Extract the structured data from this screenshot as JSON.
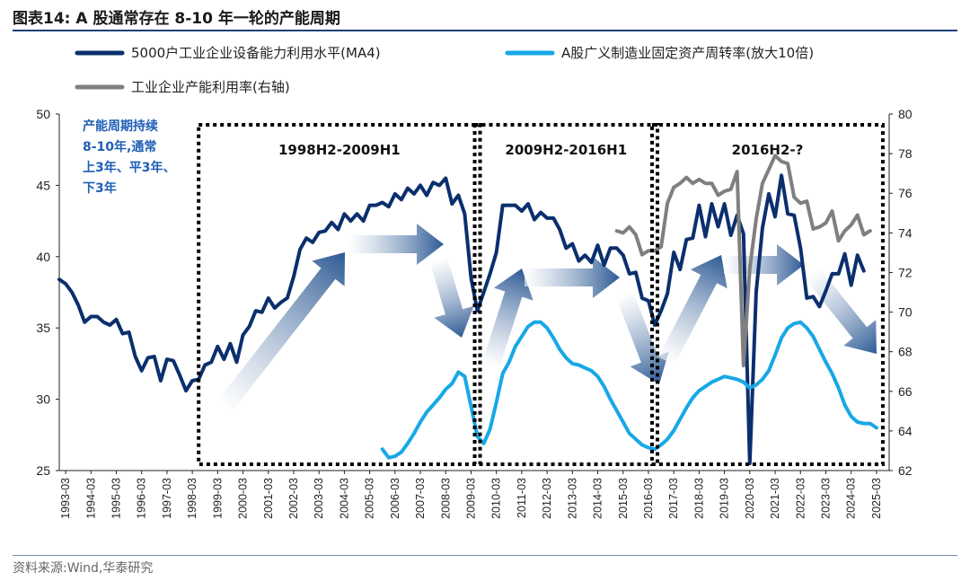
{
  "title": "图表14:  A 股通常存在 8-10 年一轮的产能周期",
  "source": "资料来源:Wind,华泰研究",
  "chart_data": {
    "type": "line",
    "colors": {
      "dark": "#0b2f6e",
      "light": "#17a8e6",
      "gray": "#7f7f7f",
      "arrow": "#2d5a94"
    },
    "legend": [
      "5000户工业企业设备能力利用水平(MA4)",
      "A股广义制造业固定资产周转率(放大10倍)",
      "工业企业产能利用率(右轴)"
    ],
    "left_axis": {
      "min": 25,
      "max": 50,
      "ticks": [
        "25",
        "30",
        "35",
        "40",
        "45",
        "50"
      ]
    },
    "right_axis": {
      "min": 62,
      "max": 80,
      "ticks": [
        "62",
        "64",
        "66",
        "68",
        "70",
        "72",
        "74",
        "76",
        "78",
        "80"
      ]
    },
    "x_range": [
      1993.0,
      2025.75
    ],
    "x_ticks": [
      "1993-03",
      "1994-03",
      "1995-03",
      "1996-03",
      "1997-03",
      "1998-03",
      "1999-03",
      "2000-03",
      "2001-03",
      "2002-03",
      "2003-03",
      "2004-03",
      "2005-03",
      "2006-03",
      "2007-03",
      "2008-03",
      "2009-03",
      "2010-03",
      "2011-03",
      "2012-03",
      "2013-03",
      "2014-03",
      "2015-03",
      "2016-03",
      "2017-03",
      "2018-03",
      "2019-03",
      "2020-03",
      "2021-03",
      "2022-03",
      "2023-03",
      "2024-03",
      "2025-03"
    ],
    "periods": [
      {
        "label": "1998H2-2009H1",
        "from": 1998.5,
        "to": 2009.5
      },
      {
        "label": "2009H2-2016H1",
        "from": 2009.5,
        "to": 2016.5
      },
      {
        "label": "2016H2-?",
        "from": 2016.5,
        "to": 2025.5
      }
    ],
    "note": [
      "产能周期持续",
      "8-10年,通常",
      "上3年、平3年、",
      "下3年"
    ],
    "series": [
      {
        "name": "5000户工业企业设备能力利用水平(MA4)",
        "axis": "left",
        "color_key": "dark",
        "points": [
          [
            1993.0,
            38.4
          ],
          [
            1993.25,
            38.1
          ],
          [
            1993.5,
            37.5
          ],
          [
            1993.75,
            36.6
          ],
          [
            1994.0,
            35.4
          ],
          [
            1994.25,
            35.8
          ],
          [
            1994.5,
            35.8
          ],
          [
            1994.75,
            35.4
          ],
          [
            1995.0,
            35.2
          ],
          [
            1995.25,
            35.6
          ],
          [
            1995.5,
            34.6
          ],
          [
            1995.75,
            34.7
          ],
          [
            1996.0,
            33.0
          ],
          [
            1996.25,
            32.0
          ],
          [
            1996.5,
            32.9
          ],
          [
            1996.75,
            33.0
          ],
          [
            1997.0,
            31.3
          ],
          [
            1997.25,
            32.8
          ],
          [
            1997.5,
            32.7
          ],
          [
            1997.75,
            31.7
          ],
          [
            1998.0,
            30.6
          ],
          [
            1998.25,
            31.3
          ],
          [
            1998.5,
            31.4
          ],
          [
            1998.75,
            32.4
          ],
          [
            1999.0,
            32.6
          ],
          [
            1999.25,
            33.7
          ],
          [
            1999.5,
            32.8
          ],
          [
            1999.75,
            33.9
          ],
          [
            2000.0,
            32.6
          ],
          [
            2000.25,
            34.5
          ],
          [
            2000.5,
            35.1
          ],
          [
            2000.75,
            36.2
          ],
          [
            2001.0,
            36.1
          ],
          [
            2001.25,
            37.1
          ],
          [
            2001.5,
            36.4
          ],
          [
            2001.75,
            36.8
          ],
          [
            2002.0,
            37.1
          ],
          [
            2002.25,
            38.6
          ],
          [
            2002.5,
            40.5
          ],
          [
            2002.75,
            41.3
          ],
          [
            2003.0,
            41.0
          ],
          [
            2003.25,
            41.7
          ],
          [
            2003.5,
            41.8
          ],
          [
            2003.75,
            42.4
          ],
          [
            2004.0,
            41.9
          ],
          [
            2004.25,
            43.0
          ],
          [
            2004.5,
            42.5
          ],
          [
            2004.75,
            43.0
          ],
          [
            2005.0,
            42.5
          ],
          [
            2005.25,
            43.6
          ],
          [
            2005.5,
            43.6
          ],
          [
            2005.75,
            43.8
          ],
          [
            2006.0,
            43.5
          ],
          [
            2006.25,
            44.4
          ],
          [
            2006.5,
            44.0
          ],
          [
            2006.75,
            44.8
          ],
          [
            2007.0,
            44.4
          ],
          [
            2007.25,
            45.0
          ],
          [
            2007.5,
            44.3
          ],
          [
            2007.75,
            45.2
          ],
          [
            2008.0,
            45.0
          ],
          [
            2008.25,
            45.5
          ],
          [
            2008.5,
            43.7
          ],
          [
            2008.75,
            44.3
          ],
          [
            2009.0,
            43.0
          ],
          [
            2009.25,
            38.5
          ],
          [
            2009.5,
            36.2
          ],
          [
            2009.75,
            37.5
          ],
          [
            2010.0,
            38.8
          ],
          [
            2010.25,
            40.3
          ],
          [
            2010.5,
            43.6
          ],
          [
            2010.75,
            43.6
          ],
          [
            2011.0,
            43.6
          ],
          [
            2011.25,
            43.2
          ],
          [
            2011.5,
            43.7
          ],
          [
            2011.75,
            42.6
          ],
          [
            2012.0,
            43.1
          ],
          [
            2012.25,
            42.7
          ],
          [
            2012.5,
            42.7
          ],
          [
            2012.75,
            41.9
          ],
          [
            2013.0,
            40.6
          ],
          [
            2013.25,
            40.9
          ],
          [
            2013.5,
            39.7
          ],
          [
            2013.75,
            40.1
          ],
          [
            2014.0,
            39.6
          ],
          [
            2014.25,
            40.8
          ],
          [
            2014.5,
            39.4
          ],
          [
            2014.75,
            40.6
          ],
          [
            2015.0,
            40.6
          ],
          [
            2015.25,
            40.1
          ],
          [
            2015.5,
            38.8
          ],
          [
            2015.75,
            38.9
          ],
          [
            2016.0,
            37.1
          ],
          [
            2016.25,
            36.9
          ],
          [
            2016.5,
            35.2
          ],
          [
            2016.75,
            36.2
          ],
          [
            2017.0,
            37.4
          ],
          [
            2017.25,
            40.3
          ],
          [
            2017.5,
            39.1
          ],
          [
            2017.75,
            41.2
          ],
          [
            2018.0,
            41.3
          ],
          [
            2018.25,
            43.6
          ],
          [
            2018.5,
            41.4
          ],
          [
            2018.75,
            43.7
          ],
          [
            2019.0,
            42.1
          ],
          [
            2019.25,
            43.7
          ],
          [
            2019.5,
            41.5
          ],
          [
            2019.75,
            42.9
          ],
          [
            2020.0,
            41.6
          ],
          [
            2020.25,
            25.5
          ],
          [
            2020.5,
            37.5
          ],
          [
            2020.75,
            42.0
          ],
          [
            2021.0,
            44.4
          ],
          [
            2021.25,
            42.8
          ],
          [
            2021.5,
            45.7
          ],
          [
            2021.75,
            43.0
          ],
          [
            2022.0,
            42.9
          ],
          [
            2022.25,
            40.6
          ],
          [
            2022.5,
            37.1
          ],
          [
            2022.75,
            37.2
          ],
          [
            2023.0,
            36.5
          ],
          [
            2023.25,
            37.6
          ],
          [
            2023.5,
            38.8
          ],
          [
            2023.75,
            38.8
          ],
          [
            2024.0,
            40.2
          ],
          [
            2024.25,
            38.0
          ],
          [
            2024.5,
            40.1
          ],
          [
            2024.75,
            39.0
          ]
        ]
      },
      {
        "name": "A股广义制造业固定资产周转率(放大10倍)",
        "axis": "left",
        "color_key": "light",
        "points": [
          [
            2005.75,
            26.5
          ],
          [
            2006.0,
            25.9
          ],
          [
            2006.25,
            26.0
          ],
          [
            2006.5,
            26.3
          ],
          [
            2006.75,
            26.9
          ],
          [
            2007.0,
            27.6
          ],
          [
            2007.25,
            28.4
          ],
          [
            2007.5,
            29.1
          ],
          [
            2007.75,
            29.6
          ],
          [
            2008.0,
            30.1
          ],
          [
            2008.25,
            30.7
          ],
          [
            2008.5,
            31.1
          ],
          [
            2008.75,
            31.9
          ],
          [
            2009.0,
            31.6
          ],
          [
            2009.25,
            29.5
          ],
          [
            2009.5,
            27.4
          ],
          [
            2009.75,
            26.9
          ],
          [
            2010.0,
            27.9
          ],
          [
            2010.25,
            29.8
          ],
          [
            2010.5,
            31.8
          ],
          [
            2010.75,
            32.6
          ],
          [
            2011.0,
            33.7
          ],
          [
            2011.25,
            34.4
          ],
          [
            2011.5,
            35.1
          ],
          [
            2011.75,
            35.4
          ],
          [
            2012.0,
            35.4
          ],
          [
            2012.25,
            35.0
          ],
          [
            2012.5,
            34.3
          ],
          [
            2012.75,
            33.5
          ],
          [
            2013.0,
            32.9
          ],
          [
            2013.25,
            32.5
          ],
          [
            2013.5,
            32.4
          ],
          [
            2013.75,
            32.2
          ],
          [
            2014.0,
            32.0
          ],
          [
            2014.25,
            31.6
          ],
          [
            2014.5,
            30.9
          ],
          [
            2014.75,
            30.0
          ],
          [
            2015.0,
            29.2
          ],
          [
            2015.25,
            28.4
          ],
          [
            2015.5,
            27.6
          ],
          [
            2015.75,
            27.2
          ],
          [
            2016.0,
            26.8
          ],
          [
            2016.25,
            26.6
          ],
          [
            2016.5,
            26.5
          ],
          [
            2016.75,
            26.8
          ],
          [
            2017.0,
            27.2
          ],
          [
            2017.25,
            27.8
          ],
          [
            2017.5,
            28.6
          ],
          [
            2017.75,
            29.4
          ],
          [
            2018.0,
            30.1
          ],
          [
            2018.25,
            30.6
          ],
          [
            2018.5,
            30.9
          ],
          [
            2018.75,
            31.2
          ],
          [
            2019.0,
            31.4
          ],
          [
            2019.25,
            31.6
          ],
          [
            2019.5,
            31.5
          ],
          [
            2019.75,
            31.4
          ],
          [
            2020.0,
            31.2
          ],
          [
            2020.25,
            30.8
          ],
          [
            2020.5,
            31.0
          ],
          [
            2020.75,
            31.4
          ],
          [
            2021.0,
            32.0
          ],
          [
            2021.25,
            33.1
          ],
          [
            2021.5,
            34.3
          ],
          [
            2021.75,
            35.0
          ],
          [
            2022.0,
            35.3
          ],
          [
            2022.25,
            35.4
          ],
          [
            2022.5,
            35.0
          ],
          [
            2022.75,
            34.4
          ],
          [
            2023.0,
            33.5
          ],
          [
            2023.25,
            32.6
          ],
          [
            2023.5,
            31.8
          ],
          [
            2023.75,
            30.8
          ],
          [
            2024.0,
            29.6
          ],
          [
            2024.25,
            28.8
          ],
          [
            2024.5,
            28.4
          ],
          [
            2024.75,
            28.3
          ],
          [
            2025.0,
            28.3
          ],
          [
            2025.25,
            28.0
          ]
        ]
      },
      {
        "name": "工业企业产能利用率(右轴)",
        "axis": "right",
        "color_key": "gray",
        "points": [
          [
            2015.0,
            74.1
          ],
          [
            2015.25,
            74.0
          ],
          [
            2015.5,
            74.3
          ],
          [
            2015.75,
            73.9
          ],
          [
            2016.0,
            72.9
          ],
          [
            2016.25,
            73.1
          ],
          [
            2016.5,
            73.1
          ],
          [
            2016.75,
            73.3
          ],
          [
            2017.0,
            75.5
          ],
          [
            2017.25,
            76.3
          ],
          [
            2017.5,
            76.5
          ],
          [
            2017.75,
            76.8
          ],
          [
            2018.0,
            76.5
          ],
          [
            2018.25,
            76.7
          ],
          [
            2018.5,
            76.5
          ],
          [
            2018.75,
            76.5
          ],
          [
            2019.0,
            75.9
          ],
          [
            2019.25,
            76.1
          ],
          [
            2019.5,
            76.2
          ],
          [
            2019.75,
            77.1
          ],
          [
            2020.0,
            67.3
          ],
          [
            2020.25,
            72.2
          ],
          [
            2020.5,
            74.7
          ],
          [
            2020.75,
            76.5
          ],
          [
            2021.0,
            77.2
          ],
          [
            2021.25,
            77.9
          ],
          [
            2021.5,
            77.6
          ],
          [
            2021.75,
            77.5
          ],
          [
            2022.0,
            75.8
          ],
          [
            2022.25,
            75.5
          ],
          [
            2022.5,
            75.6
          ],
          [
            2022.75,
            74.2
          ],
          [
            2023.0,
            74.3
          ],
          [
            2023.25,
            74.5
          ],
          [
            2023.5,
            75.1
          ],
          [
            2023.75,
            73.6
          ],
          [
            2024.0,
            74.1
          ],
          [
            2024.25,
            74.4
          ],
          [
            2024.5,
            74.9
          ],
          [
            2024.75,
            73.9
          ],
          [
            2025.0,
            74.1
          ]
        ]
      }
    ]
  }
}
